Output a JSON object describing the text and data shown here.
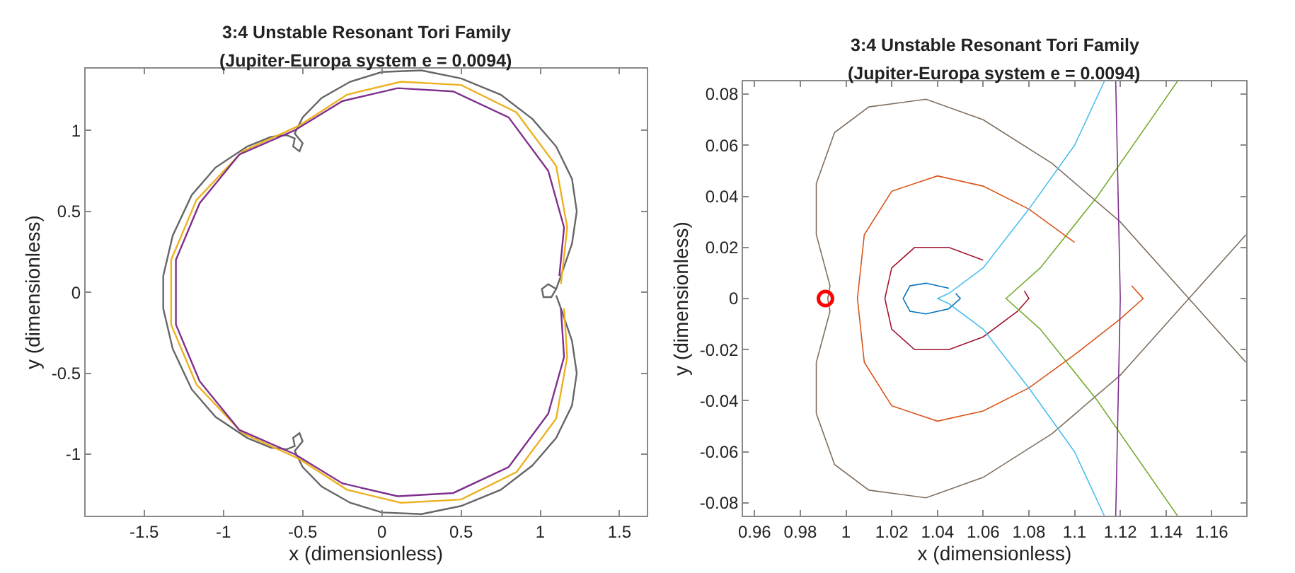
{
  "chart_data": [
    {
      "type": "line",
      "title": "3:4 Unstable Resonant Tori Family",
      "subtitle": "(Jupiter-Europa system e = 0.0094)",
      "xlabel": "x (dimensionless)",
      "ylabel": "y (dimensionless)",
      "xlim": [
        -1.87,
        1.67
      ],
      "ylim": [
        -1.38,
        1.38
      ],
      "xticks": [
        -1.5,
        -1,
        -0.5,
        0,
        0.5,
        1,
        1.5
      ],
      "yticks": [
        -1,
        -0.5,
        0,
        0.5,
        1
      ],
      "series": [
        {
          "color": "#666666",
          "x": [
            1.1,
            1.05,
            1.01,
            1.02,
            1.07,
            1.1,
            1.13,
            1.2,
            1.23,
            1.2,
            1.1,
            0.95,
            0.75,
            0.5,
            0.25,
            0.0,
            -0.2,
            -0.38,
            -0.5,
            -0.55,
            -0.5,
            -0.52,
            -0.56,
            -0.55,
            -0.6,
            -0.7,
            -0.85,
            -1.05,
            -1.2,
            -1.32,
            -1.38,
            -1.38,
            -1.32,
            -1.2,
            -1.05,
            -0.85,
            -0.7,
            -0.6,
            -0.55,
            -0.56,
            -0.52,
            -0.5,
            -0.55,
            -0.5,
            -0.38,
            -0.2,
            0,
            0.25,
            0.5,
            0.75,
            0.95,
            1.1,
            1.2,
            1.23,
            1.2,
            1.13,
            1.1
          ],
          "values": [
            0.02,
            0.05,
            0.02,
            -0.03,
            -0.03,
            0.02,
            0.1,
            0.3,
            0.5,
            0.7,
            0.9,
            1.07,
            1.22,
            1.32,
            1.37,
            1.36,
            1.3,
            1.2,
            1.08,
            0.98,
            0.92,
            0.87,
            0.9,
            0.95,
            0.97,
            0.96,
            0.9,
            0.77,
            0.6,
            0.35,
            0.1,
            -0.1,
            -0.35,
            -0.6,
            -0.77,
            -0.9,
            -0.96,
            -0.97,
            -0.95,
            -0.9,
            -0.87,
            -0.92,
            -0.98,
            -1.08,
            -1.2,
            -1.3,
            -1.36,
            -1.37,
            -1.32,
            -1.22,
            -1.07,
            -0.9,
            -0.7,
            -0.5,
            -0.3,
            -0.1,
            -0.02
          ]
        },
        {
          "color": "#edb120",
          "x": [
            1.13,
            1.17,
            1.1,
            0.85,
            0.5,
            0.12,
            -0.22,
            -0.52,
            -0.88,
            -1.17,
            -1.33,
            -1.33,
            -1.17,
            -0.88,
            -0.52,
            -0.22,
            0.12,
            0.5,
            0.85,
            1.1,
            1.17,
            1.15
          ],
          "values": [
            0.05,
            0.4,
            0.78,
            1.11,
            1.28,
            1.3,
            1.22,
            1.03,
            0.87,
            0.57,
            0.2,
            -0.2,
            -0.57,
            -0.87,
            -1.03,
            -1.22,
            -1.3,
            -1.28,
            -1.11,
            -0.78,
            -0.4,
            -0.1
          ]
        },
        {
          "color": "#7e2f8e",
          "x": [
            1.12,
            1.15,
            1.05,
            0.8,
            0.45,
            0.1,
            -0.25,
            -0.55,
            -0.9,
            -1.15,
            -1.3,
            -1.3,
            -1.15,
            -0.9,
            -0.55,
            -0.25,
            0.1,
            0.45,
            0.8,
            1.05,
            1.15,
            1.13
          ],
          "values": [
            0.1,
            0.4,
            0.75,
            1.08,
            1.24,
            1.26,
            1.18,
            1.0,
            0.85,
            0.55,
            0.2,
            -0.2,
            -0.55,
            -0.85,
            -1.0,
            -1.18,
            -1.26,
            -1.24,
            -1.08,
            -0.75,
            -0.4,
            -0.1
          ]
        }
      ]
    },
    {
      "type": "line",
      "title": "3:4 Unstable Resonant Tori Family",
      "subtitle": "(Jupiter-Europa system e = 0.0094)",
      "xlabel": "x (dimensionless)",
      "ylabel": "y (dimensionless)",
      "xlim": [
        0.955,
        1.175
      ],
      "ylim": [
        -0.085,
        0.085
      ],
      "xticks": [
        0.96,
        0.98,
        1,
        1.02,
        1.04,
        1.06,
        1.08,
        1.1,
        1.12,
        1.14,
        1.16
      ],
      "yticks": [
        -0.08,
        -0.06,
        -0.04,
        -0.02,
        0,
        0.02,
        0.04,
        0.06,
        0.08
      ],
      "series": [
        {
          "color": "#7f6f5f",
          "x": [
            1.175,
            1.15,
            1.12,
            1.09,
            1.06,
            1.035,
            1.01,
            0.995,
            0.987,
            0.987,
            0.993,
            0.992,
            0.993,
            0.987,
            0.987,
            0.995,
            1.01,
            1.035,
            1.06,
            1.09,
            1.12,
            1.15,
            1.175
          ],
          "values": [
            -0.025,
            0,
            0.03,
            0.053,
            0.07,
            0.078,
            0.075,
            0.065,
            0.045,
            0.025,
            0.005,
            0,
            -0.005,
            -0.025,
            -0.045,
            -0.065,
            -0.075,
            -0.078,
            -0.07,
            -0.053,
            -0.03,
            0,
            0.025
          ]
        },
        {
          "color": "#0072bd",
          "x": [
            1.045,
            1.035,
            1.028,
            1.025,
            1.028,
            1.035,
            1.045,
            1.05,
            1.048
          ],
          "values": [
            0.004,
            0.006,
            0.005,
            0,
            -0.005,
            -0.006,
            -0.004,
            0,
            0.002
          ]
        },
        {
          "color": "#a2142f",
          "x": [
            1.06,
            1.045,
            1.03,
            1.02,
            1.017,
            1.02,
            1.03,
            1.045,
            1.06,
            1.075,
            1.08,
            1.078
          ],
          "values": [
            0.015,
            0.02,
            0.02,
            0.012,
            0,
            -0.012,
            -0.02,
            -0.02,
            -0.015,
            -0.005,
            0,
            0.003
          ]
        },
        {
          "color": "#d95319",
          "x": [
            1.1,
            1.08,
            1.06,
            1.04,
            1.02,
            1.008,
            1.005,
            1.008,
            1.02,
            1.04,
            1.06,
            1.08,
            1.1,
            1.12,
            1.13,
            1.125
          ],
          "values": [
            0.022,
            0.035,
            0.044,
            0.048,
            0.042,
            0.025,
            0,
            -0.025,
            -0.042,
            -0.048,
            -0.044,
            -0.035,
            -0.022,
            -0.008,
            0,
            0.005
          ]
        },
        {
          "color": "#4dbeee",
          "x": [
            1.113,
            1.1,
            1.08,
            1.06,
            1.045,
            1.04,
            1.045,
            1.06,
            1.08,
            1.1,
            1.113
          ],
          "values": [
            0.085,
            0.06,
            0.035,
            0.012,
            0.002,
            0,
            -0.002,
            -0.012,
            -0.035,
            -0.06,
            -0.085
          ]
        },
        {
          "color": "#77ac30",
          "x": [
            1.145,
            1.11,
            1.085,
            1.07,
            1.085,
            1.11,
            1.145
          ],
          "values": [
            0.085,
            0.04,
            0.012,
            0,
            -0.012,
            -0.04,
            -0.085
          ]
        },
        {
          "color": "#7e2f8e",
          "x": [
            1.118,
            1.12,
            1.118
          ],
          "values": [
            0.085,
            0,
            -0.085
          ]
        },
        {
          "type": "scatter",
          "color": "#ff0000",
          "x": [
            0.991
          ],
          "values": [
            0
          ]
        }
      ]
    }
  ]
}
